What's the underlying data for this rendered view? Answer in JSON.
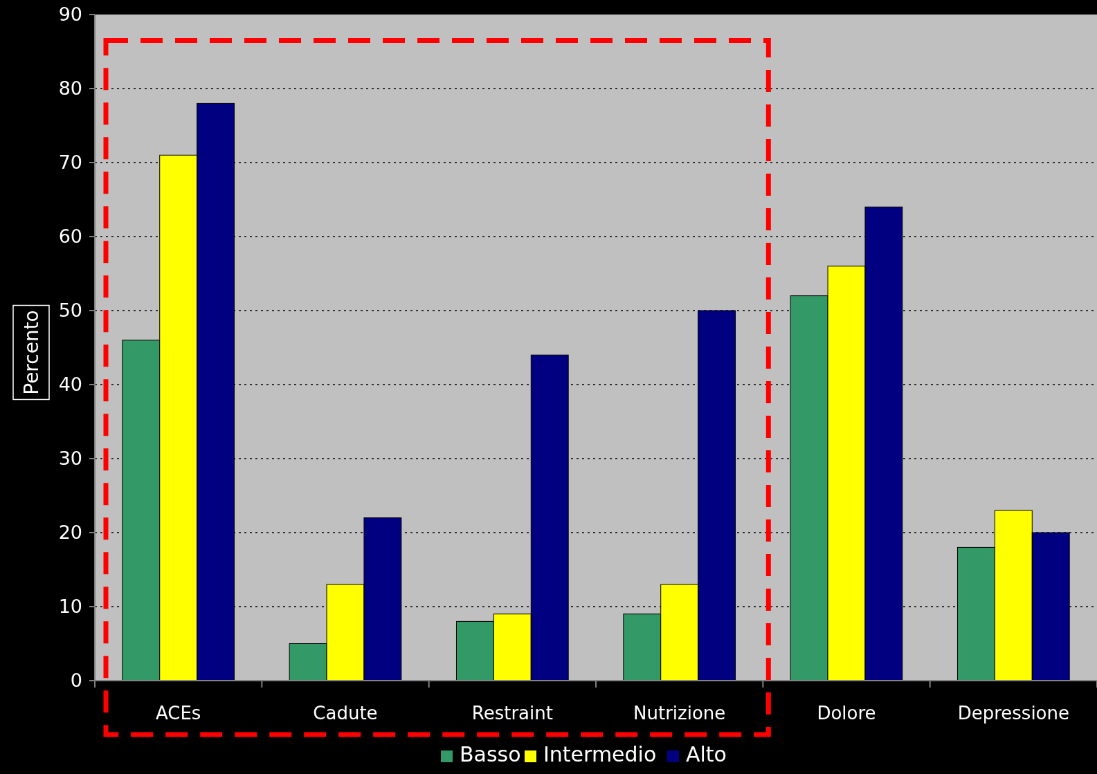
{
  "chart_data": {
    "type": "bar",
    "ylabel": "Percento",
    "categories": [
      "ACEs",
      "Cadute",
      "Restraint",
      "Nutrizione",
      "Dolore",
      "Depressione"
    ],
    "series": [
      {
        "name": "Basso",
        "color": "#339966",
        "values": [
          46,
          5,
          8,
          9,
          52,
          18
        ]
      },
      {
        "name": "Intermedio",
        "color": "#ffff00",
        "values": [
          71,
          13,
          9,
          13,
          56,
          23
        ]
      },
      {
        "name": "Alto",
        "color": "#000080",
        "values": [
          78,
          22,
          44,
          50,
          64,
          20
        ]
      }
    ],
    "ylim": [
      0,
      90
    ],
    "yticks": [
      0,
      10,
      20,
      30,
      40,
      50,
      60,
      70,
      80,
      90
    ],
    "grid": "y",
    "legend": "bottom"
  }
}
